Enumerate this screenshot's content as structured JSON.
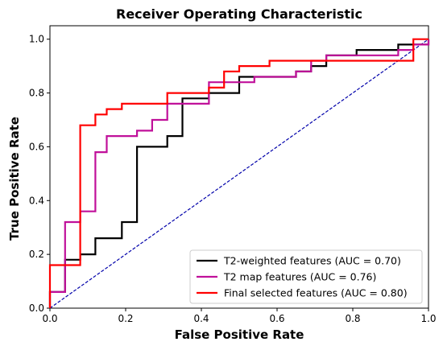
{
  "chart_data": {
    "type": "line",
    "title": "Receiver Operating Characteristic",
    "xlabel": "False Positive Rate",
    "ylabel": "True Positive Rate",
    "xlim": [
      0,
      1
    ],
    "ylim": [
      0,
      1.05
    ],
    "xticks": [
      "0.0",
      "0.2",
      "0.4",
      "0.6",
      "0.8",
      "1.0"
    ],
    "yticks": [
      "0.0",
      "0.2",
      "0.4",
      "0.6",
      "0.8",
      "1.0"
    ],
    "grid": false,
    "legend_position": "bottom-right",
    "diagonal": {
      "x": [
        0,
        1
      ],
      "y": [
        0,
        1
      ],
      "color": "#0000aa",
      "style": "dashed"
    },
    "series": [
      {
        "name": "T2-weighted features (AUC = 0.70)",
        "color": "#000000",
        "x": [
          0,
          0,
          0.04,
          0.04,
          0.08,
          0.08,
          0.12,
          0.12,
          0.19,
          0.19,
          0.23,
          0.23,
          0.31,
          0.31,
          0.35,
          0.35,
          0.42,
          0.42,
          0.5,
          0.5,
          0.65,
          0.65,
          0.69,
          0.69,
          0.73,
          0.73,
          0.81,
          0.81,
          0.92,
          0.92,
          1.0,
          1.0
        ],
        "y": [
          0,
          0.06,
          0.06,
          0.18,
          0.18,
          0.2,
          0.2,
          0.26,
          0.26,
          0.32,
          0.32,
          0.6,
          0.6,
          0.64,
          0.64,
          0.78,
          0.78,
          0.8,
          0.8,
          0.86,
          0.86,
          0.88,
          0.88,
          0.9,
          0.9,
          0.94,
          0.94,
          0.96,
          0.96,
          0.98,
          0.98,
          1.0
        ]
      },
      {
        "name": "T2 map features (AUC = 0.76)",
        "color": "#c0109a",
        "x": [
          0,
          0,
          0.04,
          0.04,
          0.08,
          0.08,
          0.12,
          0.12,
          0.15,
          0.15,
          0.23,
          0.23,
          0.27,
          0.27,
          0.31,
          0.31,
          0.42,
          0.42,
          0.54,
          0.54,
          0.65,
          0.65,
          0.69,
          0.69,
          0.73,
          0.73,
          0.92,
          0.92,
          0.96,
          0.96,
          1.0,
          1.0
        ],
        "y": [
          0,
          0.06,
          0.06,
          0.32,
          0.32,
          0.36,
          0.36,
          0.58,
          0.58,
          0.64,
          0.64,
          0.66,
          0.66,
          0.7,
          0.7,
          0.76,
          0.76,
          0.84,
          0.84,
          0.86,
          0.86,
          0.88,
          0.88,
          0.92,
          0.92,
          0.94,
          0.94,
          0.96,
          0.96,
          0.98,
          0.98,
          1.0
        ]
      },
      {
        "name": "Final selected features (AUC = 0.80)",
        "color": "#ff0000",
        "x": [
          0,
          0,
          0.08,
          0.08,
          0.12,
          0.12,
          0.15,
          0.15,
          0.19,
          0.19,
          0.31,
          0.31,
          0.42,
          0.42,
          0.46,
          0.46,
          0.5,
          0.5,
          0.58,
          0.58,
          0.96,
          0.96,
          1.0
        ],
        "y": [
          0,
          0.16,
          0.16,
          0.68,
          0.68,
          0.72,
          0.72,
          0.74,
          0.74,
          0.76,
          0.76,
          0.8,
          0.8,
          0.82,
          0.82,
          0.88,
          0.88,
          0.9,
          0.9,
          0.92,
          0.92,
          1.0,
          1.0
        ]
      }
    ]
  }
}
